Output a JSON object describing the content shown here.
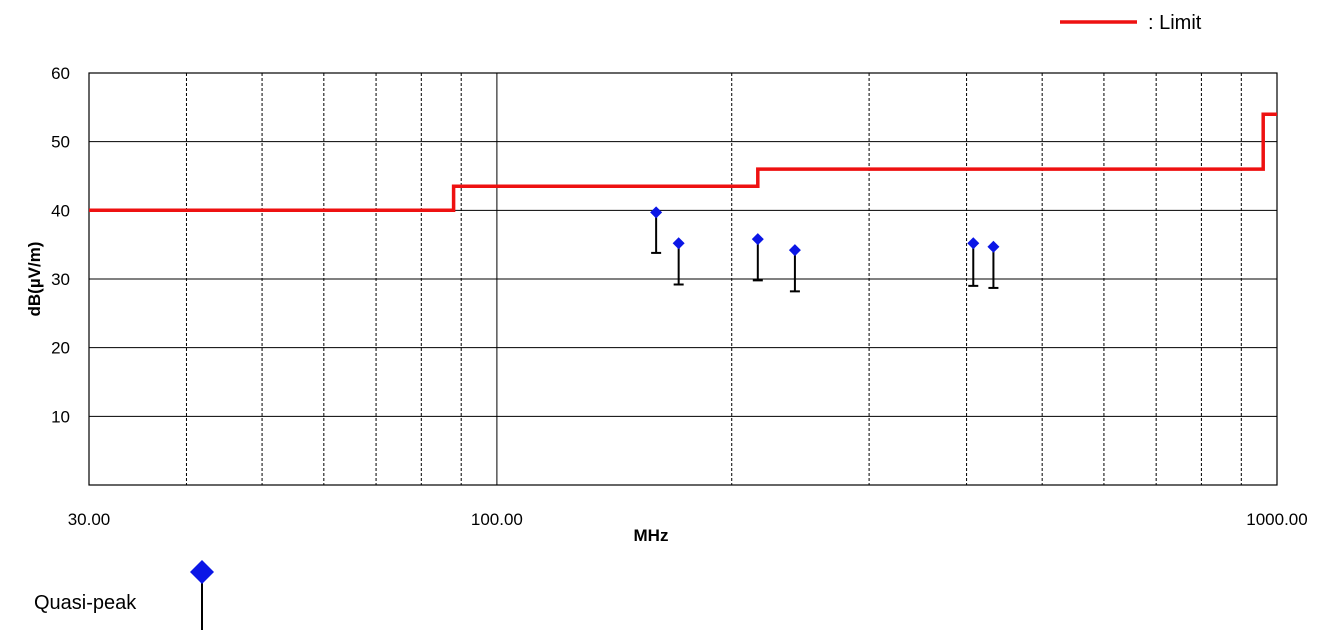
{
  "chart_data": {
    "type": "scatter",
    "title": "",
    "xlabel": "MHz",
    "ylabel": "dB(µV/m)",
    "x_scale": "log",
    "xlim": [
      30,
      1000
    ],
    "ylim": [
      0,
      60
    ],
    "x_tick_labels": [
      "30.00",
      "100.00",
      "1000.00"
    ],
    "y_ticks": [
      10,
      20,
      30,
      40,
      50,
      60
    ],
    "grid": true,
    "legend": [
      {
        "name": ": Limit",
        "kind": "line",
        "color": "#ee1111"
      },
      {
        "name": "Quasi-peak",
        "kind": "marker",
        "color": "#0b16e6"
      }
    ],
    "limit_line": {
      "name": ": Limit",
      "color": "#ee1111",
      "points": [
        [
          30,
          40
        ],
        [
          88,
          40
        ],
        [
          88,
          43.5
        ],
        [
          216,
          43.5
        ],
        [
          216,
          46
        ],
        [
          960,
          46
        ],
        [
          960,
          54
        ],
        [
          1000,
          54
        ]
      ]
    },
    "quasi_peak": {
      "name": "Quasi-peak",
      "color": "#0b16e6",
      "stem_color": "#000000",
      "points": [
        {
          "x": 160,
          "y": 39.7,
          "low": 33.8
        },
        {
          "x": 171,
          "y": 35.2,
          "low": 29.2
        },
        {
          "x": 216,
          "y": 35.8,
          "low": 29.8
        },
        {
          "x": 241,
          "y": 34.2,
          "low": 28.2
        },
        {
          "x": 408,
          "y": 35.2,
          "low": 29.0
        },
        {
          "x": 433,
          "y": 34.7,
          "low": 28.7
        }
      ]
    }
  }
}
